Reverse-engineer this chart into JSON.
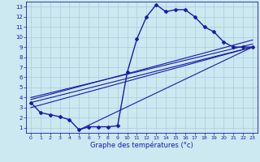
{
  "xlabel": "Graphe des températures (°c)",
  "hours": [
    0,
    1,
    2,
    3,
    4,
    5,
    6,
    7,
    8,
    9,
    10,
    11,
    12,
    13,
    14,
    15,
    16,
    17,
    18,
    19,
    20,
    21,
    22,
    23
  ],
  "temps": [
    3.5,
    2.5,
    2.3,
    2.1,
    1.8,
    0.8,
    1.1,
    1.1,
    1.1,
    1.2,
    6.5,
    9.8,
    12.0,
    13.2,
    12.5,
    12.7,
    12.7,
    12.0,
    11.0,
    10.5,
    9.5,
    9.0,
    9.0,
    9.0
  ],
  "line_color": "#1a1aaa",
  "bg_color": "#cce8f0",
  "grid_color": "#aaccd8",
  "xlim": [
    -0.5,
    23.5
  ],
  "ylim": [
    0.5,
    13.5
  ],
  "xticks": [
    0,
    1,
    2,
    3,
    4,
    5,
    6,
    7,
    8,
    9,
    10,
    11,
    12,
    13,
    14,
    15,
    16,
    17,
    18,
    19,
    20,
    21,
    22,
    23
  ],
  "yticks": [
    1,
    2,
    3,
    4,
    5,
    6,
    7,
    8,
    9,
    10,
    11,
    12,
    13
  ],
  "straight_lines": [
    [
      [
        0,
        23
      ],
      [
        3.5,
        9.0
      ]
    ],
    [
      [
        0,
        23
      ],
      [
        3.5,
        9.0
      ]
    ],
    [
      [
        0,
        23
      ],
      [
        4.2,
        9.0
      ]
    ],
    [
      [
        0,
        23
      ],
      [
        3.0,
        9.5
      ]
    ]
  ]
}
